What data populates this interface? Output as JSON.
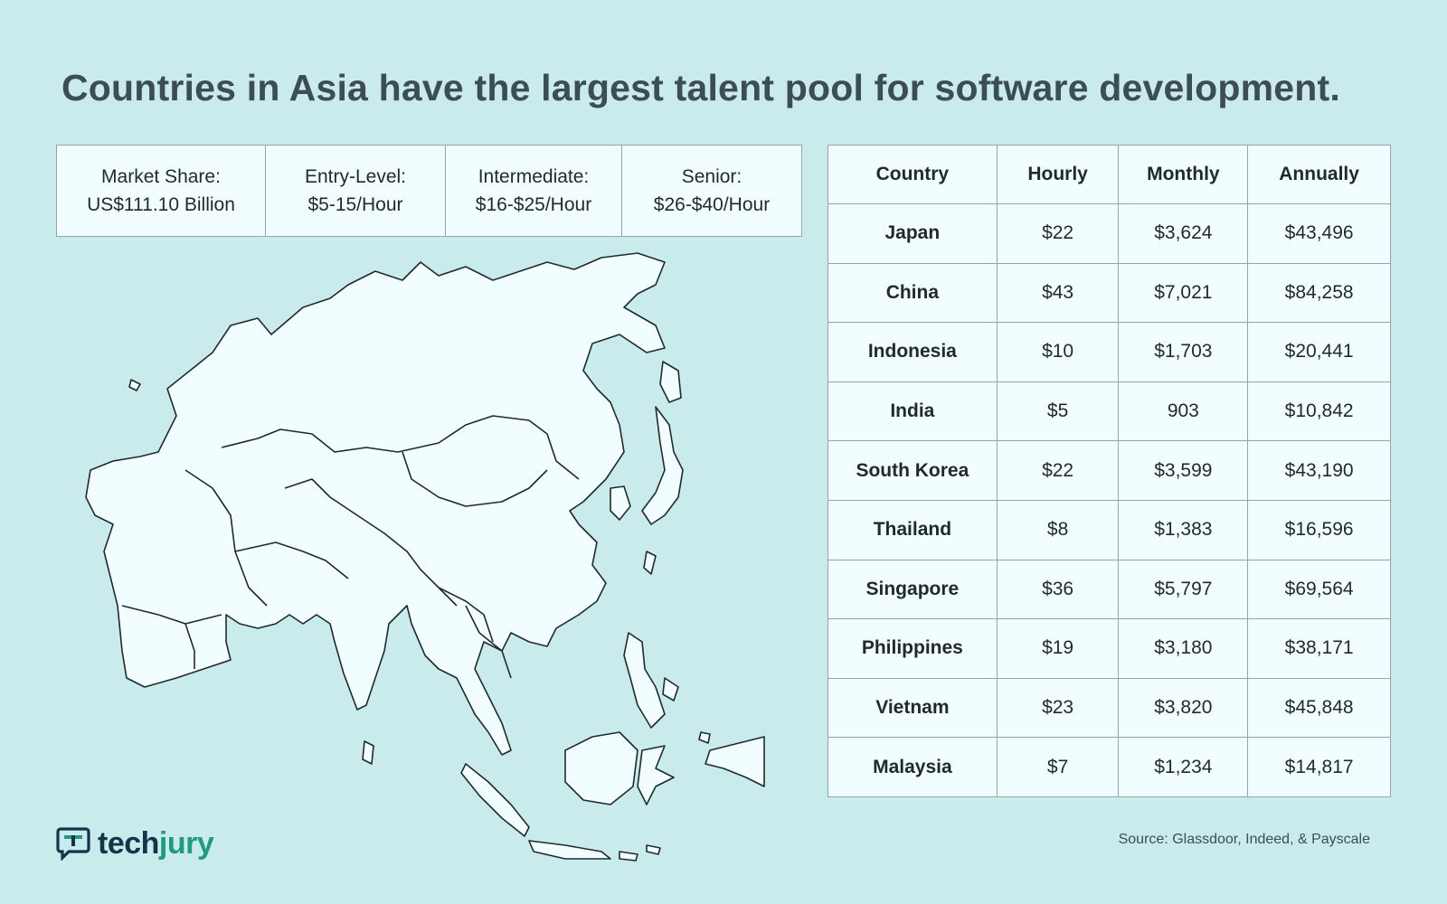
{
  "title": "Countries in Asia have the largest talent pool for software development.",
  "stats": [
    {
      "label": "Market Share:",
      "value": "US$111.10 Billion"
    },
    {
      "label": "Entry-Level:",
      "value": "$5-15/Hour"
    },
    {
      "label": "Intermediate:",
      "value": "$16-$25/Hour"
    },
    {
      "label": "Senior:",
      "value": "$26-$40/Hour"
    }
  ],
  "table": {
    "headers": [
      "Country",
      "Hourly",
      "Monthly",
      "Annually"
    ],
    "rows": [
      [
        "Japan",
        "$22",
        "$3,624",
        "$43,496"
      ],
      [
        "China",
        "$43",
        "$7,021",
        "$84,258"
      ],
      [
        "Indonesia",
        "$10",
        "$1,703",
        "$20,441"
      ],
      [
        "India",
        "$5",
        "903",
        "$10,842"
      ],
      [
        "South Korea",
        "$22",
        "$3,599",
        "$43,190"
      ],
      [
        "Thailand",
        "$8",
        "$1,383",
        "$16,596"
      ],
      [
        "Singapore",
        "$36",
        "$5,797",
        "$69,564"
      ],
      [
        "Philippines",
        "$19",
        "$3,180",
        "$38,171"
      ],
      [
        "Vietnam",
        "$23",
        "$3,820",
        "$45,848"
      ],
      [
        "Malaysia",
        "$7",
        "$1,234",
        "$14,817"
      ]
    ]
  },
  "logo": {
    "tech": "tech",
    "jury": "jury"
  },
  "source": "Source: Glassdoor, Indeed, & Payscale",
  "colors": {
    "background": "#c9ebec",
    "panel": "#f1fdfe",
    "border": "#8fa7ab",
    "title": "#3d4d55",
    "brand_dark": "#15344a",
    "brand_accent": "#1e9a83"
  },
  "icons": {
    "map": "asia-map-icon",
    "logo": "chat-bubble-logo-icon"
  }
}
